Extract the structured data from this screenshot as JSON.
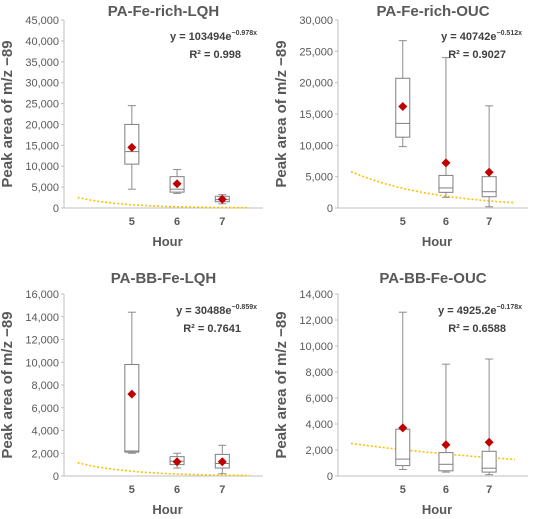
{
  "chart_data": [
    {
      "type": "box",
      "title": "PA-Fe-rich-LQH",
      "ylabel": "Peak area of m/z −89",
      "xlabel": "Hour",
      "categories": [
        "5",
        "6",
        "7"
      ],
      "ylim": [
        0,
        45000
      ],
      "yticks": [
        "0",
        "5,000",
        "10,000",
        "15,000",
        "20,000",
        "25,000",
        "30,000",
        "35,000",
        "40,000",
        "45,000"
      ],
      "boxes": [
        {
          "min": 4500,
          "q1": 10500,
          "median": 13500,
          "q3": 20000,
          "max": 24500,
          "mean": 14500
        },
        {
          "min": 3500,
          "q1": 3800,
          "median": 4500,
          "q3": 7500,
          "max": 9200,
          "mean": 5800
        },
        {
          "min": 1000,
          "q1": 1500,
          "median": 2000,
          "q3": 2800,
          "max": 3200,
          "mean": 2100
        }
      ],
      "trendline": {
        "type": "exponential",
        "a": 103494,
        "b": -0.978,
        "x_range": [
          3.8,
          7.6
        ]
      },
      "equation": "y = 103494e",
      "exponent": "−0.978x",
      "r2": "R² = 0.998",
      "xlim": [
        3.5,
        7.9
      ]
    },
    {
      "type": "box",
      "title": "PA-Fe-rich-OUC",
      "ylabel": "Peak area of m/z −89",
      "xlabel": "Hour",
      "categories": [
        "5",
        "6",
        "7"
      ],
      "ylim": [
        0,
        30000
      ],
      "yticks": [
        "0",
        "5,000",
        "10,000",
        "15,000",
        "20,000",
        "25,000",
        "30,000"
      ],
      "boxes": [
        {
          "min": 9800,
          "q1": 11300,
          "median": 13500,
          "q3": 20700,
          "max": 26700,
          "mean": 16200
        },
        {
          "min": 1700,
          "q1": 2500,
          "median": 3200,
          "q3": 5200,
          "max": 24000,
          "mean": 7200
        },
        {
          "min": 200,
          "q1": 1800,
          "median": 2600,
          "q3": 5000,
          "max": 16300,
          "mean": 5700
        }
      ],
      "trendline": {
        "type": "exponential",
        "a": 40742,
        "b": -0.512,
        "x_range": [
          3.8,
          7.6
        ]
      },
      "equation": "y = 40742e",
      "exponent": "−0.512x",
      "r2": "R² = 0.9027",
      "xlim": [
        3.5,
        7.9
      ]
    },
    {
      "type": "box",
      "title": "PA-BB-Fe-LQH",
      "ylabel": "Peak area of m/z −89",
      "xlabel": "Hour",
      "categories": [
        "5",
        "6",
        "7"
      ],
      "ylim": [
        0,
        16000
      ],
      "yticks": [
        "0",
        "2,000",
        "4,000",
        "6,000",
        "8,000",
        "10,000",
        "12,000",
        "14,000",
        "16,000"
      ],
      "boxes": [
        {
          "min": 2000,
          "q1": 2100,
          "median": 2200,
          "q3": 9800,
          "max": 14400,
          "mean": 7200
        },
        {
          "min": 700,
          "q1": 1000,
          "median": 1300,
          "q3": 1700,
          "max": 2000,
          "mean": 1250
        },
        {
          "min": 200,
          "q1": 700,
          "median": 1100,
          "q3": 1900,
          "max": 2700,
          "mean": 1250
        }
      ],
      "trendline": {
        "type": "exponential",
        "a": 30488,
        "b": -0.859,
        "x_range": [
          3.8,
          7.6
        ]
      },
      "equation": "y = 30488e",
      "exponent": "−0.859x",
      "r2": "R² = 0.7641",
      "xlim": [
        3.5,
        7.9
      ]
    },
    {
      "type": "box",
      "title": "PA-BB-Fe-OUC",
      "ylabel": "Peak area of m/z −89",
      "xlabel": "Hour",
      "categories": [
        "5",
        "6",
        "7"
      ],
      "ylim": [
        0,
        14000
      ],
      "yticks": [
        "0",
        "2,000",
        "4,000",
        "6,000",
        "8,000",
        "10,000",
        "12,000",
        "14,000"
      ],
      "boxes": [
        {
          "min": 500,
          "q1": 800,
          "median": 1300,
          "q3": 3600,
          "max": 12600,
          "mean": 3700
        },
        {
          "min": 300,
          "q1": 400,
          "median": 900,
          "q3": 1800,
          "max": 8600,
          "mean": 2400
        },
        {
          "min": 100,
          "q1": 300,
          "median": 600,
          "q3": 1900,
          "max": 9000,
          "mean": 2600
        }
      ],
      "trendline": {
        "type": "exponential",
        "a": 4925.2,
        "b": -0.178,
        "x_range": [
          3.8,
          7.6
        ]
      },
      "equation": "y = 4925.2e",
      "exponent": "−0.178x",
      "r2": "R² = 0.6588",
      "xlim": [
        3.5,
        7.9
      ]
    }
  ],
  "colors": {
    "box_stroke": "#7f7f7f",
    "whisker": "#8c8c8c",
    "mean_marker": "#c00000",
    "trendline": "#ffc000",
    "axis": "#bfbfbf",
    "text": "#595959"
  }
}
